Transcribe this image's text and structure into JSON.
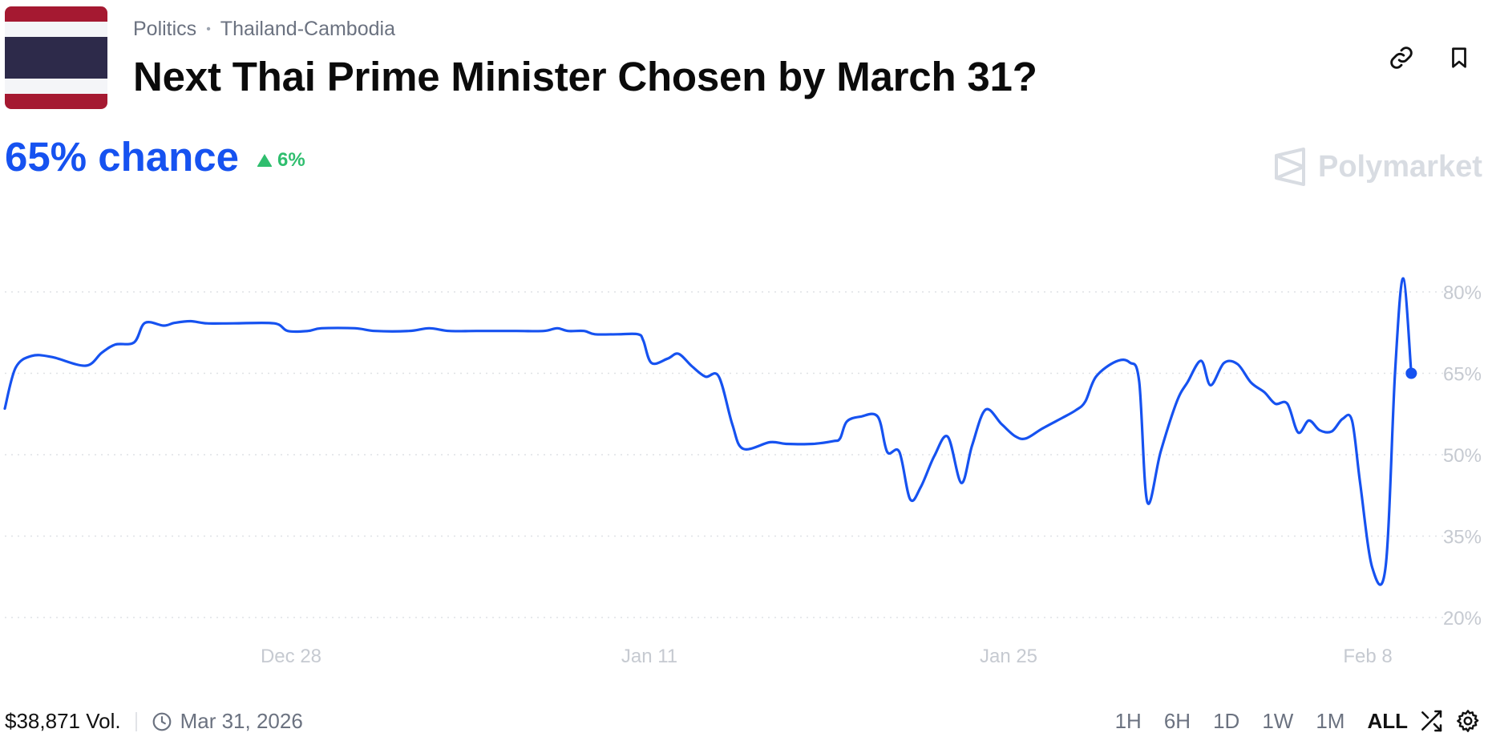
{
  "breadcrumb": {
    "category": "Politics",
    "subcategory": "Thailand-Cambodia"
  },
  "title": "Next Thai Prime Minister Chosen by March 31?",
  "chance_text": "65% chance",
  "change_text": "6%",
  "brand": "Polymarket",
  "footer": {
    "volume": "$38,871 Vol.",
    "end_date": "Mar 31, 2026"
  },
  "ranges": [
    "1H",
    "6H",
    "1D",
    "1W",
    "1M",
    "ALL"
  ],
  "active_range": "ALL",
  "colors": {
    "accent": "#1652f0",
    "positive": "#2fbe6e",
    "muted": "#6b7280",
    "axis_text": "#c6cad1",
    "flag_red": "#a51931",
    "flag_blue": "#2d2a4a",
    "flag_white": "#f4f5f8"
  },
  "icons": {
    "link": "link-icon",
    "bookmark": "bookmark-icon",
    "clock": "clock-icon",
    "shuffle": "shuffle-icon",
    "settings": "gear-icon",
    "up": "triangle-up-icon"
  },
  "chart_data": {
    "type": "line",
    "title": "",
    "xlabel": "",
    "ylabel": "",
    "x_ticks": [
      "Dec 28",
      "Jan 11",
      "Jan 25",
      "Feb 8"
    ],
    "y_ticks": [
      "20%",
      "35%",
      "50%",
      "65%",
      "80%"
    ],
    "ylim": [
      17,
      88
    ],
    "xlim": [
      0,
      1.045
    ],
    "grid": "horizontal dotted",
    "series": [
      {
        "color": "#1652f0",
        "points": [
          [
            0.0,
            58.5
          ],
          [
            0.008,
            66.0
          ],
          [
            0.02,
            68.2
          ],
          [
            0.035,
            68.0
          ],
          [
            0.06,
            66.4
          ],
          [
            0.072,
            68.8
          ],
          [
            0.082,
            70.3
          ],
          [
            0.096,
            70.7
          ],
          [
            0.104,
            74.3
          ],
          [
            0.118,
            73.8
          ],
          [
            0.126,
            74.3
          ],
          [
            0.138,
            74.6
          ],
          [
            0.15,
            74.2
          ],
          [
            0.17,
            74.2
          ],
          [
            0.2,
            74.2
          ],
          [
            0.21,
            72.8
          ],
          [
            0.225,
            72.8
          ],
          [
            0.235,
            73.3
          ],
          [
            0.26,
            73.3
          ],
          [
            0.275,
            72.8
          ],
          [
            0.3,
            72.8
          ],
          [
            0.315,
            73.3
          ],
          [
            0.33,
            72.8
          ],
          [
            0.35,
            72.8
          ],
          [
            0.38,
            72.8
          ],
          [
            0.4,
            72.8
          ],
          [
            0.41,
            73.3
          ],
          [
            0.418,
            72.8
          ],
          [
            0.43,
            72.8
          ],
          [
            0.438,
            72.2
          ],
          [
            0.455,
            72.2
          ],
          [
            0.47,
            72.2
          ],
          [
            0.474,
            71.0
          ],
          [
            0.48,
            66.9
          ],
          [
            0.492,
            67.7
          ],
          [
            0.5,
            68.6
          ],
          [
            0.51,
            66.3
          ],
          [
            0.52,
            64.4
          ],
          [
            0.53,
            64.4
          ],
          [
            0.54,
            55.6
          ],
          [
            0.548,
            51.1
          ],
          [
            0.568,
            52.3
          ],
          [
            0.58,
            52.0
          ],
          [
            0.6,
            52.0
          ],
          [
            0.615,
            52.5
          ],
          [
            0.62,
            53.0
          ],
          [
            0.625,
            56.1
          ],
          [
            0.635,
            57.0
          ],
          [
            0.648,
            57.0
          ],
          [
            0.655,
            50.5
          ],
          [
            0.664,
            50.5
          ],
          [
            0.672,
            41.8
          ],
          [
            0.68,
            44.1
          ],
          [
            0.69,
            49.8
          ],
          [
            0.7,
            53.3
          ],
          [
            0.71,
            44.8
          ],
          [
            0.718,
            51.7
          ],
          [
            0.728,
            58.3
          ],
          [
            0.74,
            55.6
          ],
          [
            0.75,
            53.4
          ],
          [
            0.758,
            53.0
          ],
          [
            0.77,
            54.8
          ],
          [
            0.785,
            56.8
          ],
          [
            0.795,
            58.2
          ],
          [
            0.802,
            59.8
          ],
          [
            0.81,
            64.4
          ],
          [
            0.825,
            67.2
          ],
          [
            0.835,
            67.0
          ],
          [
            0.842,
            63.5
          ],
          [
            0.848,
            41.3
          ],
          [
            0.858,
            50.6
          ],
          [
            0.87,
            59.8
          ],
          [
            0.878,
            63.4
          ],
          [
            0.888,
            67.3
          ],
          [
            0.895,
            62.8
          ],
          [
            0.905,
            66.9
          ],
          [
            0.915,
            66.7
          ],
          [
            0.925,
            63.3
          ],
          [
            0.935,
            61.5
          ],
          [
            0.943,
            59.4
          ],
          [
            0.952,
            59.4
          ],
          [
            0.96,
            54.1
          ],
          [
            0.968,
            56.3
          ],
          [
            0.976,
            54.5
          ],
          [
            0.985,
            54.3
          ],
          [
            0.993,
            56.6
          ],
          [
            1.0,
            56.3
          ],
          [
            1.006,
            44.8
          ],
          [
            1.015,
            29.2
          ],
          [
            1.025,
            29.5
          ],
          [
            1.032,
            65.5
          ],
          [
            1.038,
            82.5
          ],
          [
            1.044,
            65.0
          ]
        ]
      }
    ]
  }
}
